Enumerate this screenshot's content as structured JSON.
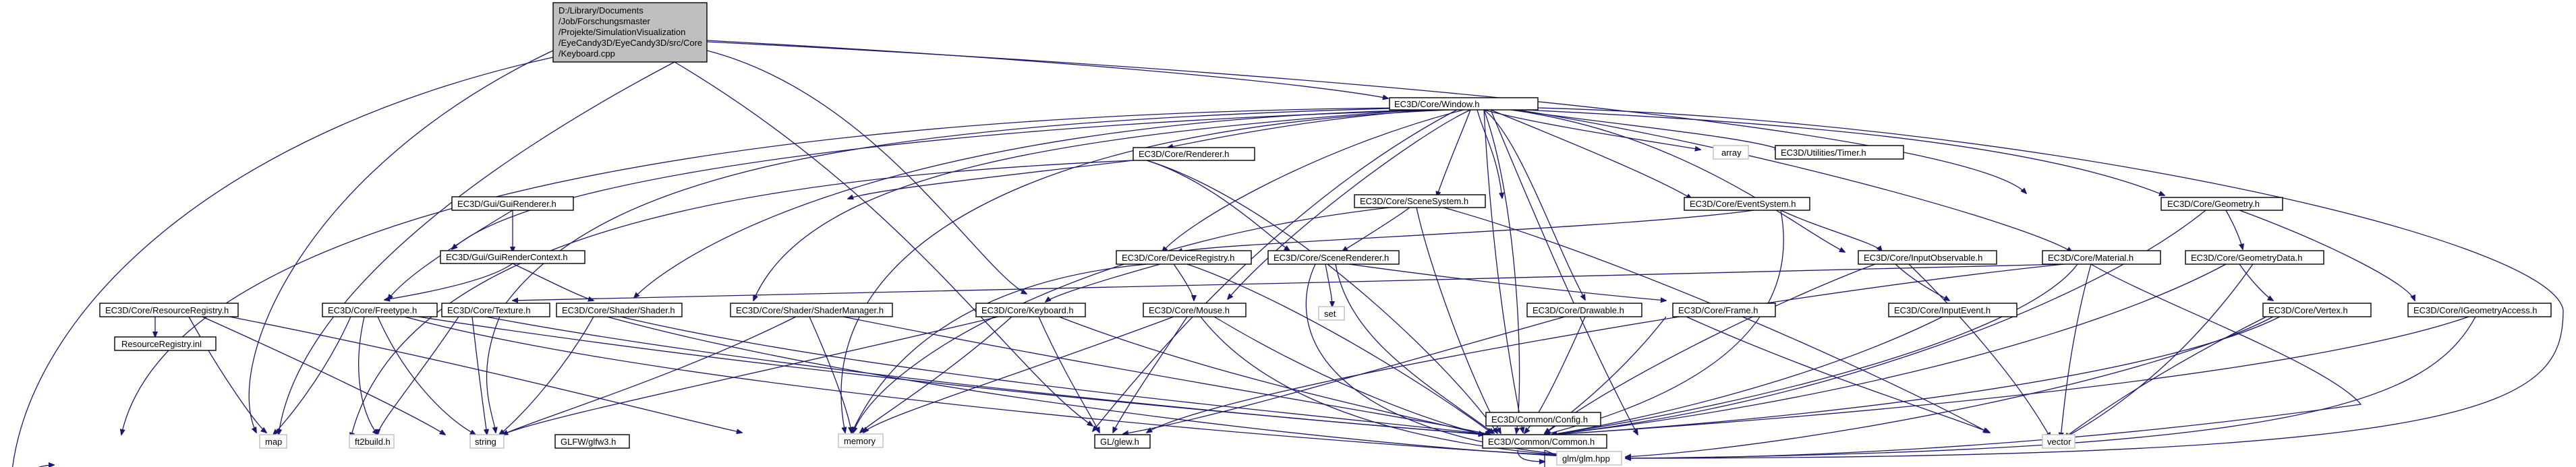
{
  "graph": {
    "root": [
      "D:/Library/Documents",
      "/Job/Forschungsmaster",
      "/Projekte/SimulationVisualization",
      "/EyeCandy3D/EyeCandy3D/src/Core",
      "/Keyboard.cpp"
    ],
    "nodes": {
      "window": "EC3D/Core/Window.h",
      "renderer": "EC3D/Core/Renderer.h",
      "array": "array",
      "timer": "EC3D/Utilities/Timer.h",
      "geometry": "EC3D/Core/Geometry.h",
      "guiRenderer": "EC3D/Gui/GuiRenderer.h",
      "sceneSystem": "EC3D/Core/SceneSystem.h",
      "eventSystem": "EC3D/Core/EventSystem.h",
      "guiRenderContext": "EC3D/Gui/GuiRenderContext.h",
      "deviceRegistry": "EC3D/Core/DeviceRegistry.h",
      "sceneRenderer": "EC3D/Core/SceneRenderer.h",
      "inputObservable": "EC3D/Core/InputObservable.h",
      "material": "EC3D/Core/Material.h",
      "geometryData": "EC3D/Core/GeometryData.h",
      "resourceRegistry": "EC3D/Core/ResourceRegistry.h",
      "freetype": "EC3D/Core/Freetype.h",
      "texture": "EC3D/Core/Texture.h",
      "shader": "EC3D/Core/Shader/Shader.h",
      "shaderManager": "EC3D/Core/Shader/ShaderManager.h",
      "keyboard": "EC3D/Core/Keyboard.h",
      "mouse": "EC3D/Core/Mouse.h",
      "set": "set",
      "drawable": "EC3D/Core/Drawable.h",
      "frame": "EC3D/Core/Frame.h",
      "inputEvent": "EC3D/Core/InputEvent.h",
      "vertex": "EC3D/Core/Vertex.h",
      "iGeometryAccess": "EC3D/Core/IGeometryAccess.h",
      "resourceRegistryInl": "ResourceRegistry.inl",
      "map": "map",
      "ft2build": "ft2build.h",
      "string": "string",
      "glfw": "GLFW/glfw3.h",
      "memory": "memory",
      "glew": "GL/glew.h",
      "common": "EC3D/Common/Common.h",
      "vector": "vector",
      "config": "EC3D/Common/Config.h",
      "glm": "glm/glm.hpp"
    }
  }
}
